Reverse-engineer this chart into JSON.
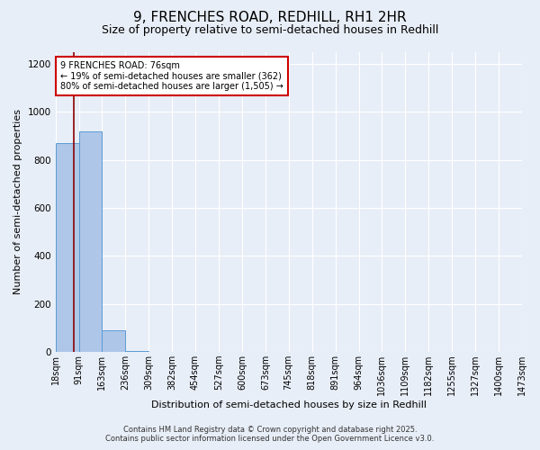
{
  "title": "9, FRENCHES ROAD, REDHILL, RH1 2HR",
  "subtitle": "Size of property relative to semi-detached houses in Redhill",
  "xlabel": "Distribution of semi-detached houses by size in Redhill",
  "ylabel": "Number of semi-detached properties",
  "footnote1": "Contains HM Land Registry data © Crown copyright and database right 2025.",
  "footnote2": "Contains public sector information licensed under the Open Government Licence v3.0.",
  "annotation_title": "9 FRENCHES ROAD: 76sqm",
  "annotation_line2": "← 19% of semi-detached houses are smaller (362)",
  "annotation_line3": "80% of semi-detached houses are larger (1,505) →",
  "property_size": 76,
  "bar_edges": [
    18,
    91,
    163,
    236,
    309,
    382,
    454,
    527,
    600,
    673,
    745,
    818,
    891,
    964,
    1036,
    1109,
    1182,
    1255,
    1327,
    1400,
    1473
  ],
  "bar_heights": [
    870,
    920,
    90,
    5,
    0,
    0,
    0,
    0,
    0,
    0,
    0,
    0,
    0,
    0,
    0,
    0,
    0,
    0,
    0,
    0
  ],
  "bar_color": "#aec6e8",
  "bar_edge_color": "#5b9bd5",
  "vline_color": "#8b0000",
  "ylim": [
    0,
    1250
  ],
  "yticks": [
    0,
    200,
    400,
    600,
    800,
    1000,
    1200
  ],
  "background_color": "#e8eef7",
  "grid_color": "#ffffff",
  "title_fontsize": 11,
  "subtitle_fontsize": 9,
  "xlabel_fontsize": 8,
  "ylabel_fontsize": 8,
  "tick_fontsize": 7,
  "annotation_fontsize": 7,
  "footnote_fontsize": 6
}
